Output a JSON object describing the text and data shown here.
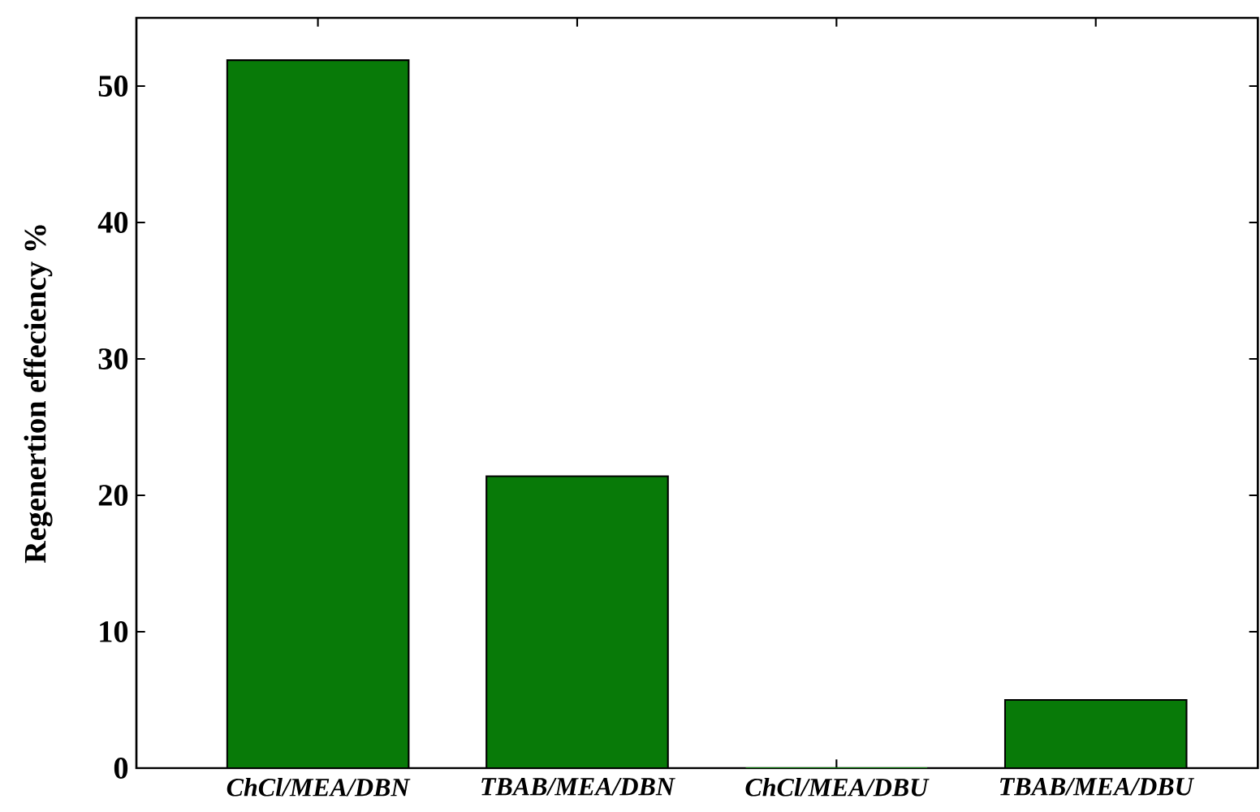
{
  "chart_data": {
    "type": "bar",
    "ylabel": "Regenertion effeciency %",
    "categories": [
      "ChCl/MEA/DBN",
      "TBAB/MEA/DBN",
      "ChCl/MEA/DBU",
      "TBAB/MEA/DBU"
    ],
    "values": [
      51.9,
      21.4,
      0,
      5.0
    ],
    "color": "#087a08",
    "ylim": [
      0,
      55
    ],
    "yticks": [
      0,
      10,
      20,
      30,
      40,
      50
    ],
    "grid": false
  }
}
